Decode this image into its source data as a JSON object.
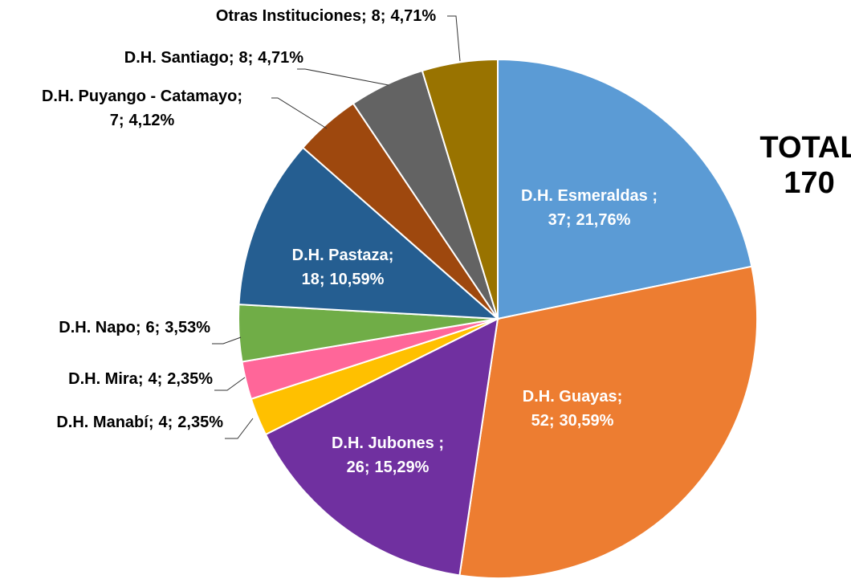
{
  "chart_data": {
    "type": "pie",
    "categories": [
      "D.H. Esmeraldas ",
      "D.H. Guayas",
      "D.H. Jubones ",
      "D.H. Manabí",
      "D.H. Mira",
      "D.H. Napo",
      "D.H. Pastaza",
      "D.H. Puyango - Catamayo",
      "D.H. Santiago",
      "Otras Instituciones"
    ],
    "values": [
      37,
      52,
      26,
      4,
      4,
      6,
      18,
      7,
      8,
      8
    ],
    "percentages": [
      21.76,
      30.59,
      15.29,
      2.35,
      2.35,
      3.53,
      10.59,
      4.12,
      4.71,
      4.71
    ],
    "percentage_labels": [
      "21,76%",
      "30,59%",
      "15,29%",
      "2,35%",
      "2,35%",
      "3,53%",
      "10,59%",
      "4,12%",
      "4,71%",
      "4,71%"
    ],
    "separator": ";",
    "colors": [
      "#5b9bd5",
      "#ed7d31",
      "#7030a0",
      "#ffc000",
      "#ff6699",
      "#70ad47",
      "#255e91",
      "#9e480e",
      "#636363",
      "#997300"
    ],
    "total_label": "TOTAL",
    "total": 170
  }
}
